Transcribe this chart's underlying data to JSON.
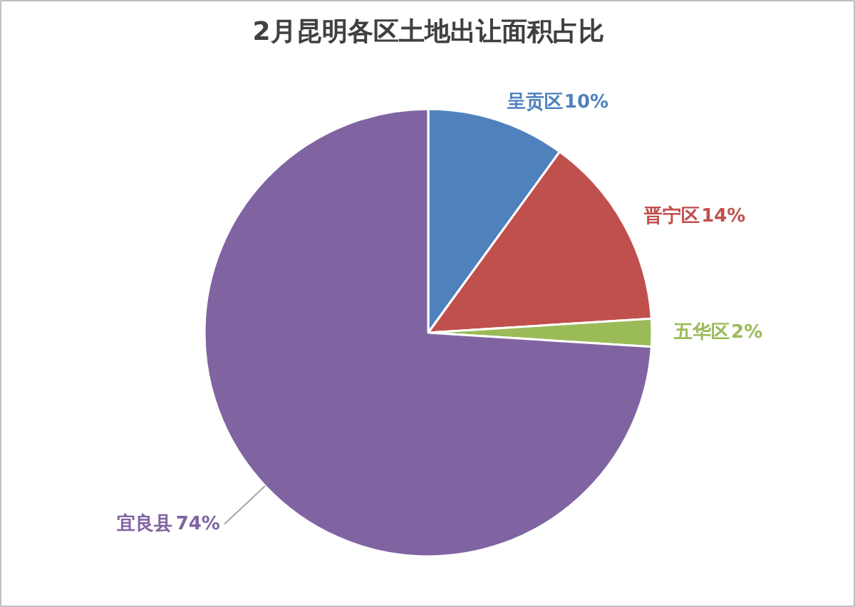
{
  "chart_data": {
    "type": "pie",
    "title": "2月昆明各区土地出让面积占比",
    "categories": [
      "呈贡区",
      "晋宁区",
      "五华区",
      "宜良县"
    ],
    "values": [
      10,
      14,
      2,
      74
    ],
    "colors": [
      "#4f81bd",
      "#c0504d",
      "#9bbb59",
      "#8064a2"
    ],
    "value_labels": [
      "10%",
      "14%",
      "2%",
      "74%"
    ]
  }
}
